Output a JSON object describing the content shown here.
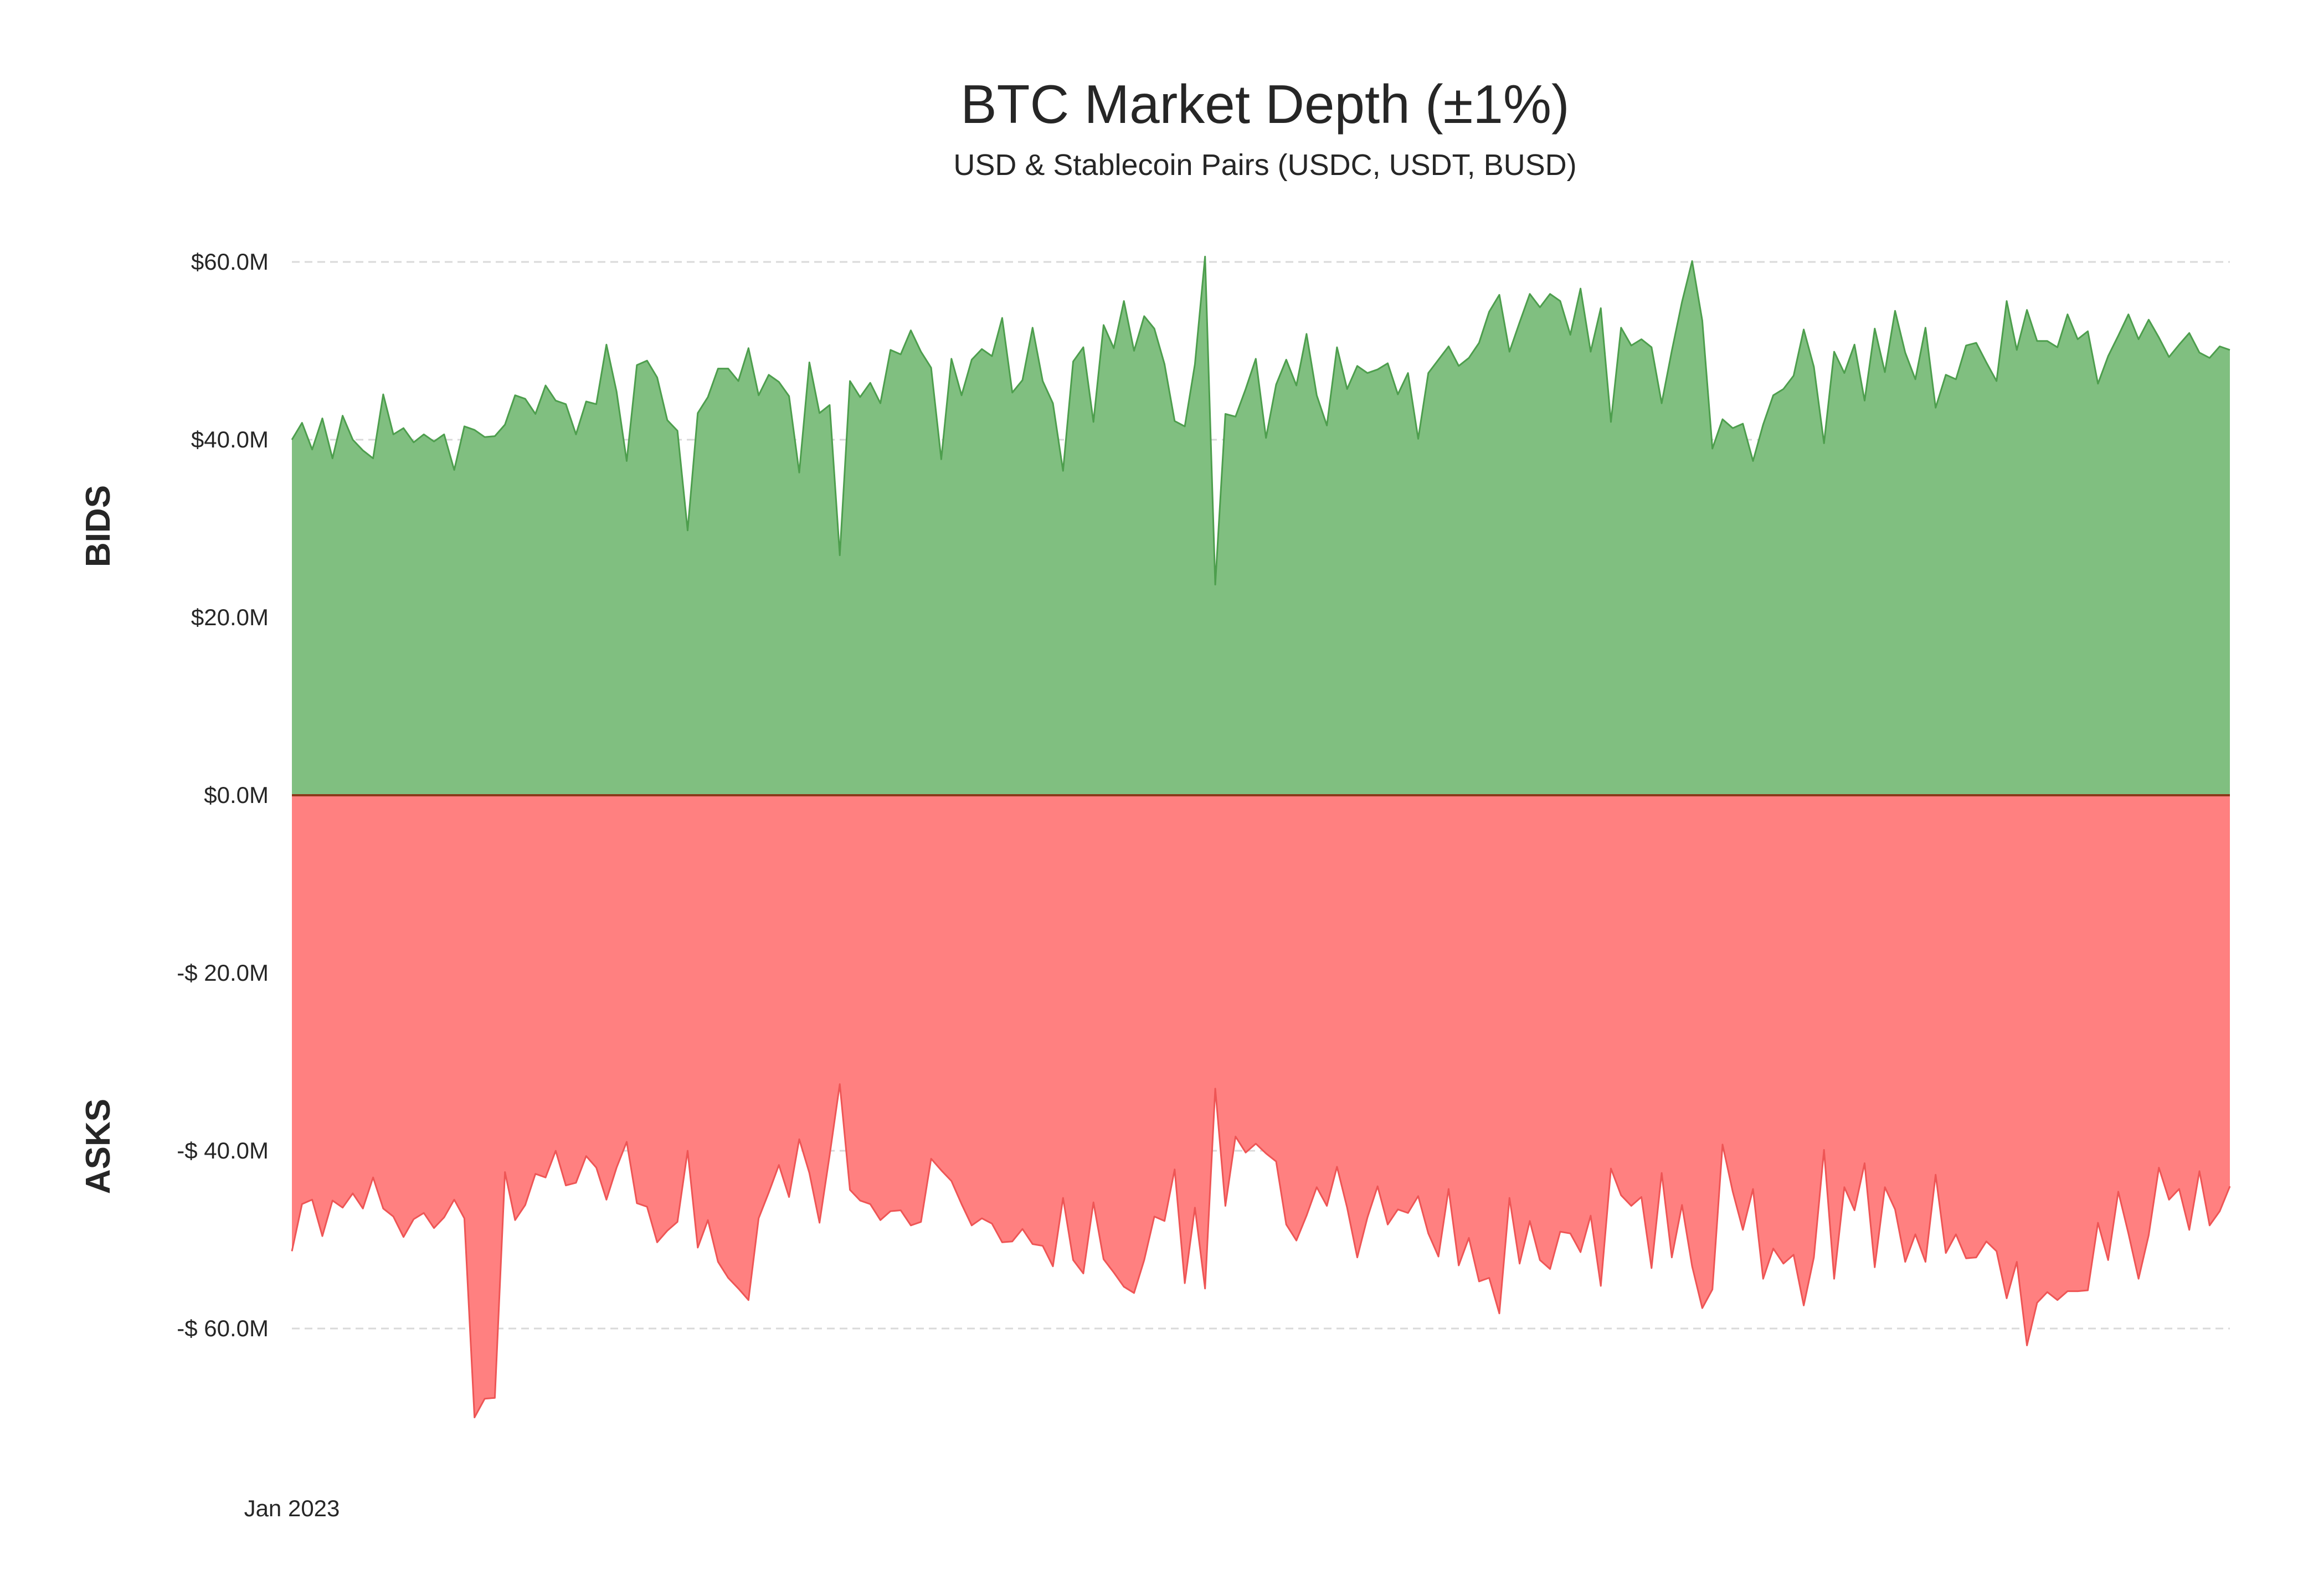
{
  "chart_data": {
    "type": "area",
    "title": "BTC Market Depth (±1%)",
    "subtitle": "USD & Stablecoin Pairs (USDC, USDT, BUSD)",
    "xlabel": "",
    "ylabel": "",
    "side_labels": {
      "top": "BIDS",
      "bottom": "ASKS"
    },
    "x_tick_labels": [
      {
        "label": "Jan 2023",
        "index": 0
      }
    ],
    "y_ticks": [
      {
        "value": 60,
        "label": "$60.0M"
      },
      {
        "value": 40,
        "label": "$40.0M"
      },
      {
        "value": 20,
        "label": "$20.0M"
      },
      {
        "value": 0,
        "label": "$0.0M"
      },
      {
        "value": -20,
        "label": "-$ 20.0M"
      },
      {
        "value": -40,
        "label": "-$ 40.0M"
      },
      {
        "value": -60,
        "label": "-$ 60.0M"
      }
    ],
    "ylim": [
      -72,
      64
    ],
    "units": "$M",
    "grid": true,
    "colors": {
      "bids_fill": "#80bf80",
      "bids_line": "#4d9e4d",
      "asks_fill": "#ff8080",
      "asks_line": "#ee5555",
      "zero_line": "#8b3a1a"
    },
    "series": [
      {
        "name": "BIDS",
        "values": [
          40.0,
          41.9,
          38.9,
          42.4,
          37.9,
          42.7,
          40.0,
          38.8,
          37.9,
          45.1,
          40.6,
          41.3,
          39.7,
          40.6,
          39.8,
          40.6,
          36.6,
          41.5,
          41.1,
          40.3,
          40.4,
          41.7,
          45.0,
          44.6,
          42.9,
          46.1,
          44.4,
          44.0,
          40.6,
          44.3,
          44.0,
          50.7,
          45.4,
          37.6,
          48.4,
          48.9,
          47.0,
          42.2,
          41.0,
          29.8,
          43.0,
          44.8,
          48.0,
          48.0,
          46.6,
          50.3,
          45.0,
          47.3,
          46.5,
          44.9,
          36.3,
          48.7,
          43.0,
          43.9,
          27.0,
          46.6,
          44.8,
          46.4,
          44.1,
          50.1,
          49.6,
          52.3,
          49.9,
          48.1,
          37.8,
          49.1,
          45.0,
          49.0,
          50.2,
          49.4,
          53.7,
          45.3,
          46.7,
          52.6,
          46.6,
          44.1,
          36.5,
          48.8,
          50.4,
          42.0,
          52.9,
          50.3,
          55.6,
          50.0,
          53.9,
          52.5,
          48.5,
          42.1,
          41.5,
          48.5,
          60.6,
          23.7,
          42.9,
          42.6,
          45.7,
          49.1,
          40.2,
          46.2,
          49.0,
          46.1,
          51.9,
          45.0,
          41.6,
          50.4,
          45.7,
          48.3,
          47.5,
          47.9,
          48.6,
          45.1,
          47.5,
          40.1,
          47.5,
          49.0,
          50.5,
          48.3,
          49.2,
          50.9,
          54.4,
          56.3,
          49.9,
          53.2,
          56.4,
          54.9,
          56.4,
          55.6,
          51.8,
          57.0,
          49.9,
          54.8,
          42.0,
          52.6,
          50.6,
          51.3,
          50.4,
          44.1,
          50.0,
          55.5,
          60.1,
          53.4,
          39.0,
          42.3,
          41.3,
          41.8,
          37.6,
          41.7,
          45.0,
          45.7,
          47.2,
          52.4,
          48.2,
          39.6,
          49.9,
          47.5,
          50.7,
          44.4,
          52.5,
          47.6,
          54.5,
          49.8,
          46.8,
          52.6,
          43.6,
          47.3,
          46.8,
          50.6,
          50.9,
          48.7,
          46.6,
          55.6,
          50.1,
          54.6,
          51.1,
          51.1,
          50.4,
          54.1,
          51.3,
          52.2,
          46.3,
          49.4,
          51.7,
          54.1,
          51.3,
          53.5,
          51.5,
          49.3,
          50.7,
          52.0,
          49.8,
          49.2,
          50.5,
          50.1
        ]
      },
      {
        "name": "ASKS",
        "values": [
          -51.3,
          -46.0,
          -45.5,
          -49.6,
          -45.6,
          -46.4,
          -44.8,
          -46.5,
          -43.0,
          -46.5,
          -47.4,
          -49.7,
          -47.7,
          -47.0,
          -48.7,
          -47.5,
          -45.5,
          -47.6,
          -70.0,
          -67.9,
          -67.8,
          -42.4,
          -47.8,
          -46.1,
          -42.6,
          -43.0,
          -40.0,
          -43.9,
          -43.6,
          -40.6,
          -41.9,
          -45.5,
          -41.9,
          -39.0,
          -45.9,
          -46.3,
          -50.3,
          -49.0,
          -48.0,
          -40.0,
          -50.9,
          -47.8,
          -52.5,
          -54.3,
          -55.5,
          -56.8,
          -47.6,
          -44.7,
          -41.6,
          -45.2,
          -38.7,
          -42.5,
          -48.1,
          -40.5,
          -32.5,
          -44.4,
          -45.6,
          -46.0,
          -47.8,
          -46.8,
          -46.7,
          -48.4,
          -48.0,
          -40.9,
          -42.2,
          -43.4,
          -46.0,
          -48.4,
          -47.6,
          -48.2,
          -50.3,
          -50.2,
          -48.8,
          -50.5,
          -50.7,
          -53.0,
          -45.3,
          -52.3,
          -53.8,
          -45.8,
          -52.2,
          -53.7,
          -55.3,
          -56.0,
          -52.3,
          -47.4,
          -47.9,
          -42.1,
          -54.9,
          -46.4,
          -55.5,
          -33.0,
          -46.2,
          -38.4,
          -40.2,
          -39.2,
          -40.3,
          -41.2,
          -48.3,
          -50.1,
          -47.3,
          -44.1,
          -46.2,
          -41.8,
          -46.4,
          -52.0,
          -47.5,
          -44.0,
          -48.3,
          -46.6,
          -47.0,
          -45.1,
          -49.3,
          -51.9,
          -44.3,
          -52.9,
          -49.8,
          -54.7,
          -54.3,
          -58.3,
          -45.3,
          -52.7,
          -47.9,
          -52.3,
          -53.3,
          -49.1,
          -49.3,
          -51.4,
          -47.3,
          -55.2,
          -42.0,
          -45.0,
          -46.2,
          -45.2,
          -53.2,
          -42.5,
          -52.0,
          -46.1,
          -53.0,
          -57.7,
          -55.6,
          -39.3,
          -44.6,
          -48.9,
          -44.3,
          -54.4,
          -51.0,
          -52.7,
          -51.7,
          -57.4,
          -52.0,
          -39.9,
          -54.4,
          -44.1,
          -46.7,
          -41.4,
          -53.1,
          -44.1,
          -46.6,
          -52.5,
          -49.4,
          -52.5,
          -42.7,
          -51.5,
          -49.4,
          -52.1,
          -52.0,
          -50.2,
          -51.3,
          -56.6,
          -52.5,
          -61.9,
          -57.1,
          -55.9,
          -56.8,
          -55.8,
          -55.8,
          -55.7,
          -48.1,
          -52.3,
          -44.6,
          -49.3,
          -54.4,
          -49.5,
          -41.9,
          -45.5,
          -44.3,
          -48.9,
          -42.3,
          -48.4,
          -46.8,
          -44.0
        ]
      }
    ]
  }
}
